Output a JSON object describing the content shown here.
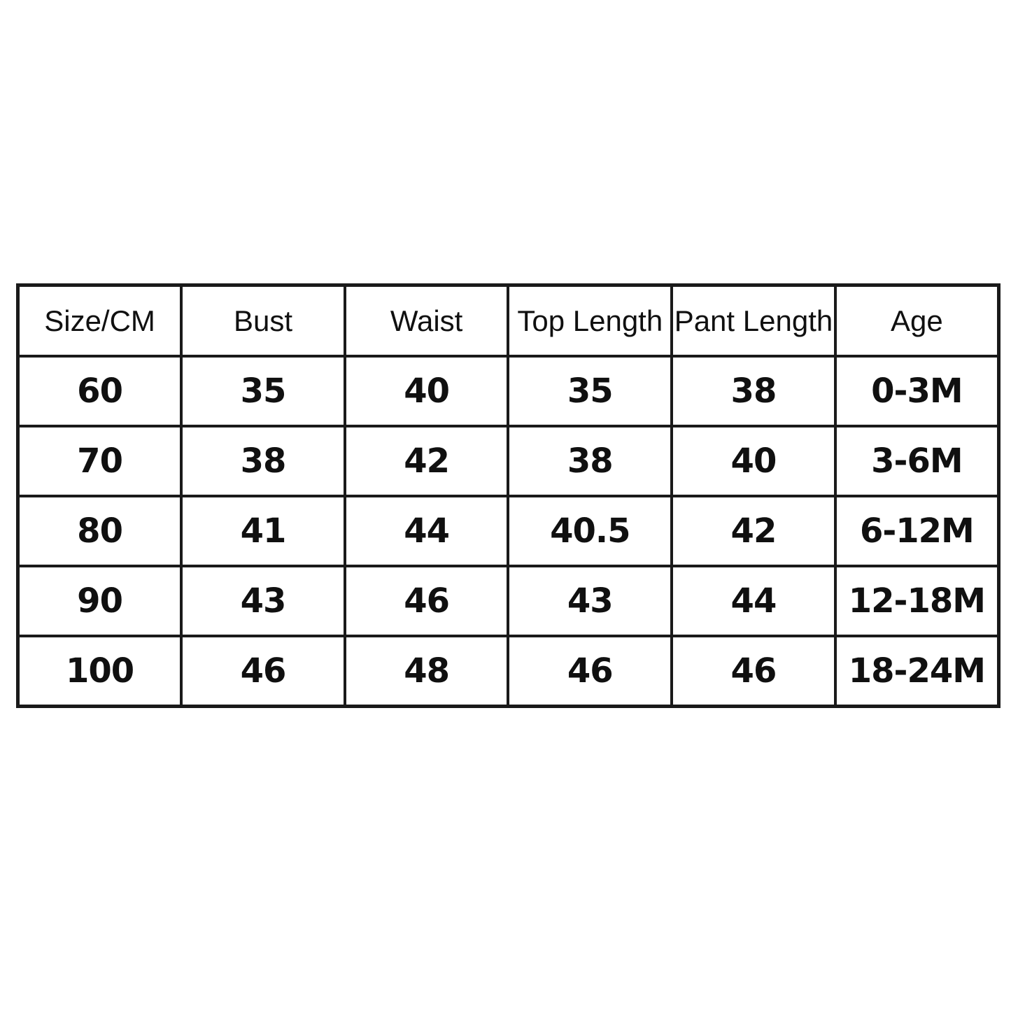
{
  "page": {
    "background": "#ffffff",
    "description_label": "Baby clothing size chart"
  },
  "chart_data": {
    "type": "table",
    "title": "",
    "columns": [
      "Size/CM",
      "Bust",
      "Waist",
      "Top Length",
      "Pant Length",
      "Age"
    ],
    "rows": [
      [
        "60",
        "35",
        "40",
        "35",
        "38",
        "0-3M"
      ],
      [
        "70",
        "38",
        "42",
        "38",
        "40",
        "3-6M"
      ],
      [
        "80",
        "41",
        "44",
        "40.5",
        "42",
        "6-12M"
      ],
      [
        "90",
        "43",
        "46",
        "43",
        "44",
        "12-18M"
      ],
      [
        "100",
        "46",
        "48",
        "46",
        "46",
        "18-24M"
      ]
    ],
    "units": "CM",
    "border_color": "#1a1a1a",
    "text_color": "#101010",
    "grid": true
  }
}
